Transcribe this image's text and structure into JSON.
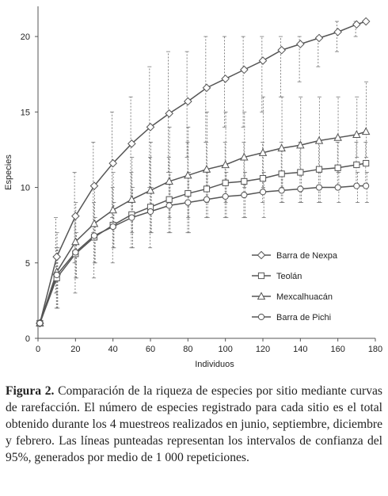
{
  "chart_data": {
    "type": "line",
    "xlabel": "Individuos",
    "ylabel": "Especies",
    "xlim": [
      0,
      180
    ],
    "ylim": [
      0,
      22
    ],
    "x_ticks": [
      0,
      20,
      40,
      60,
      80,
      100,
      120,
      140,
      160,
      180
    ],
    "y_ticks": [
      0,
      5,
      10,
      15,
      20
    ],
    "grid": false,
    "legend_position": "bottom-right",
    "error_bars": "dotted vertical lines, 95% confidence intervals",
    "series": [
      {
        "name": "Barra de Nexpa",
        "marker": "diamond",
        "x": [
          1,
          10,
          20,
          30,
          40,
          50,
          60,
          70,
          80,
          90,
          100,
          110,
          120,
          130,
          140,
          150,
          160,
          170,
          175
        ],
        "values": [
          1,
          5.4,
          8.1,
          10.1,
          11.6,
          12.9,
          14,
          14.9,
          15.7,
          16.6,
          17.2,
          17.8,
          18.4,
          19.1,
          19.5,
          19.9,
          20.3,
          20.8,
          21
        ],
        "ci_low": [
          1,
          3,
          5,
          7,
          8,
          9,
          10,
          11,
          12,
          13,
          14,
          14,
          15,
          16,
          17,
          18,
          19,
          20,
          21
        ],
        "ci_high": [
          1,
          8,
          11,
          13,
          15,
          16,
          18,
          19,
          19,
          20,
          20,
          20,
          20,
          20,
          20,
          20,
          21,
          21,
          21
        ]
      },
      {
        "name": "Teolán",
        "marker": "square",
        "x": [
          1,
          10,
          20,
          30,
          40,
          50,
          60,
          70,
          80,
          90,
          100,
          110,
          120,
          130,
          140,
          150,
          160,
          170,
          175
        ],
        "values": [
          1,
          4,
          5.6,
          6.7,
          7.5,
          8.2,
          8.7,
          9.2,
          9.6,
          9.9,
          10.3,
          10.4,
          10.6,
          10.9,
          11,
          11.2,
          11.3,
          11.5,
          11.6
        ],
        "ci_low": [
          1,
          2,
          3,
          4,
          5,
          6,
          6,
          7,
          7,
          8,
          8,
          8,
          9,
          9,
          9,
          9,
          10,
          10,
          10
        ],
        "ci_high": [
          1,
          6,
          8,
          9,
          10,
          11,
          12,
          12,
          13,
          13,
          13,
          13,
          13,
          13,
          13,
          13,
          13,
          13,
          13
        ]
      },
      {
        "name": "Mexcalhuacán",
        "marker": "triangle",
        "x": [
          1,
          10,
          20,
          30,
          40,
          50,
          60,
          70,
          80,
          90,
          100,
          110,
          120,
          130,
          140,
          150,
          160,
          170,
          175
        ],
        "values": [
          1,
          4.4,
          6.4,
          7.6,
          8.5,
          9.2,
          9.8,
          10.4,
          10.8,
          11.2,
          11.5,
          12,
          12.3,
          12.6,
          12.8,
          13.1,
          13.3,
          13.5,
          13.7
        ],
        "ci_low": [
          1,
          2,
          4,
          5,
          6,
          7,
          7,
          8,
          8,
          9,
          9,
          10,
          10,
          10,
          11,
          11,
          11,
          12,
          12
        ],
        "ci_high": [
          1,
          7,
          9,
          10,
          11,
          12,
          13,
          14,
          14,
          15,
          15,
          15,
          16,
          16,
          16,
          16,
          16,
          16,
          17
        ]
      },
      {
        "name": "Barra de Pichi",
        "marker": "circle",
        "x": [
          1,
          10,
          20,
          30,
          40,
          50,
          60,
          70,
          80,
          90,
          100,
          110,
          120,
          130,
          140,
          150,
          160,
          170,
          175
        ],
        "values": [
          1,
          4.2,
          5.7,
          6.8,
          7.4,
          8,
          8.4,
          8.8,
          9,
          9.2,
          9.4,
          9.5,
          9.7,
          9.8,
          9.9,
          10,
          10,
          10.1,
          10.1
        ],
        "ci_low": [
          1,
          2,
          4,
          5,
          6,
          6,
          7,
          7,
          7,
          8,
          8,
          8,
          8,
          9,
          9,
          9,
          9,
          9,
          9
        ],
        "ci_high": [
          1,
          6,
          7,
          8,
          9,
          10,
          10,
          11,
          11,
          11,
          11,
          11,
          11,
          11,
          11,
          11,
          11,
          11,
          11
        ]
      }
    ]
  },
  "caption": {
    "label": "Figura 2.",
    "text": " Comparación de la riqueza de especies por sitio mediante curvas de rarefacción. El número de especies registrado para cada sitio es el total obtenido durante los 4 muestreos realizados en junio, septiembre, diciembre y febrero. Las líneas punteadas representan los intervalos de confianza del 95%, generados por medio de 1 000 repeticiones."
  }
}
